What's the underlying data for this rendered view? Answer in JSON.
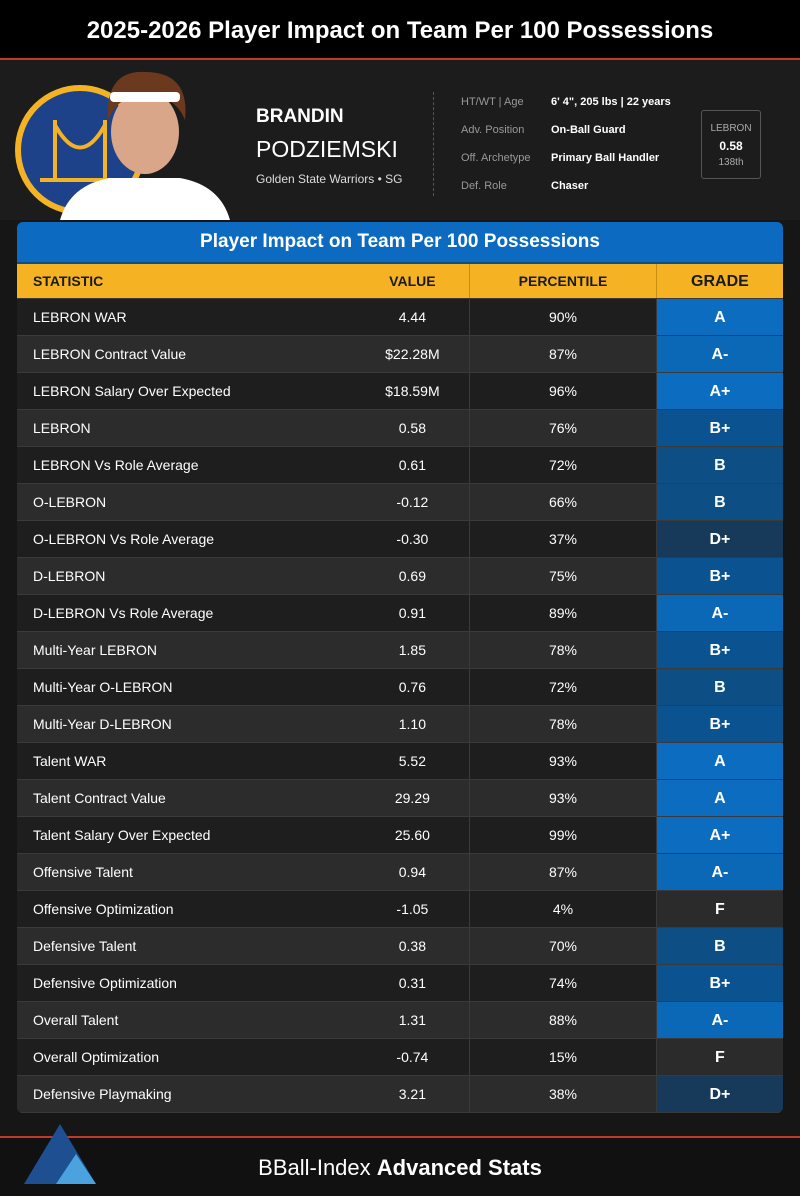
{
  "header": {
    "title": "2025-2026 Player Impact on Team Per 100 Possessions"
  },
  "player": {
    "first_name": "BRANDIN",
    "last_name": "PODZIEMSKI",
    "team_line": "Golden State Warriors • SG",
    "info": [
      {
        "label": "HT/WT | Age",
        "value": "6' 4\", 205 lbs | 22 years"
      },
      {
        "label": "Adv. Position",
        "value": "On-Ball Guard"
      },
      {
        "label": "Off. Archetype",
        "value": "Primary Ball Handler"
      },
      {
        "label": "Def. Role",
        "value": "Chaser"
      }
    ],
    "badge": {
      "label": "LEBRON",
      "value": "0.58",
      "rank": "138th"
    }
  },
  "table": {
    "title": "Player Impact on Team Per 100 Possessions",
    "columns": [
      "STATISTIC",
      "VALUE",
      "PERCENTILE",
      "GRADE"
    ],
    "rows": [
      [
        "LEBRON WAR",
        "4.44",
        "90%",
        "A"
      ],
      [
        "LEBRON Contract Value",
        "$22.28M",
        "87%",
        "A-"
      ],
      [
        "LEBRON Salary Over Expected",
        "$18.59M",
        "96%",
        "A+"
      ],
      [
        "LEBRON",
        "0.58",
        "76%",
        "B+"
      ],
      [
        "LEBRON Vs Role Average",
        "0.61",
        "72%",
        "B"
      ],
      [
        "O-LEBRON",
        "-0.12",
        "66%",
        "B"
      ],
      [
        "O-LEBRON Vs Role Average",
        "-0.30",
        "37%",
        "D+"
      ],
      [
        "D-LEBRON",
        "0.69",
        "75%",
        "B+"
      ],
      [
        "D-LEBRON Vs Role Average",
        "0.91",
        "89%",
        "A-"
      ],
      [
        "Multi-Year LEBRON",
        "1.85",
        "78%",
        "B+"
      ],
      [
        "Multi-Year O-LEBRON",
        "0.76",
        "72%",
        "B"
      ],
      [
        "Multi-Year D-LEBRON",
        "1.10",
        "78%",
        "B+"
      ],
      [
        "Talent WAR",
        "5.52",
        "93%",
        "A"
      ],
      [
        "Talent Contract Value",
        "29.29",
        "93%",
        "A"
      ],
      [
        "Talent Salary Over Expected",
        "25.60",
        "99%",
        "A+"
      ],
      [
        "Offensive Talent",
        "0.94",
        "87%",
        "A-"
      ],
      [
        "Offensive Optimization",
        "-1.05",
        "4%",
        "F"
      ],
      [
        "Defensive Talent",
        "0.38",
        "70%",
        "B"
      ],
      [
        "Defensive Optimization",
        "0.31",
        "74%",
        "B+"
      ],
      [
        "Overall Talent",
        "1.31",
        "88%",
        "A-"
      ],
      [
        "Overall Optimization",
        "-0.74",
        "15%",
        "F"
      ],
      [
        "Defensive Playmaking",
        "3.21",
        "38%",
        "D+"
      ]
    ],
    "grade_colors": [
      "#0b6cc0",
      "#0a68b6",
      "#0b6cc0",
      "#0b5290",
      "#0d4f85",
      "#0d4f85",
      "#17395a",
      "#0b5290",
      "#0a68b6",
      "#0b5290",
      "#0d4f85",
      "#0b5290",
      "#0b6cc0",
      "#0b6cc0",
      "#0b6cc0",
      "#0a68b6",
      "#2b2b2b",
      "#0d4f85",
      "#0b5290",
      "#0a68b6",
      "#2b2b2b",
      "#17395a"
    ]
  },
  "footer": {
    "brand": "BBall-Index",
    "tagline": "Advanced Stats"
  }
}
